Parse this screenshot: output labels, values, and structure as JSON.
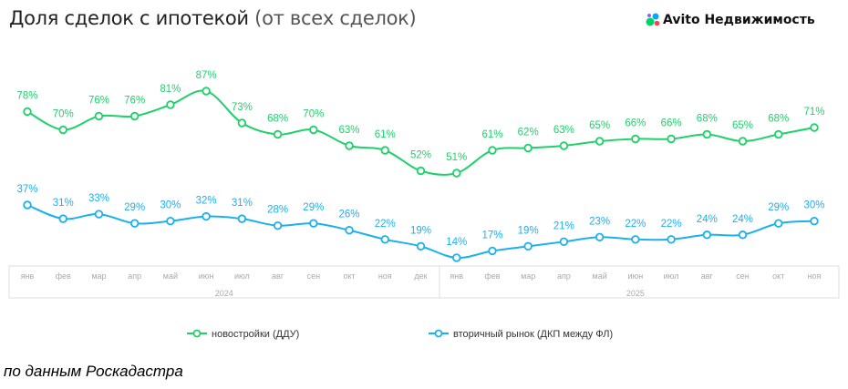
{
  "title": {
    "main": "Доля сделок с ипотекой",
    "sub": "(от всех сделок)"
  },
  "logo": {
    "text": "Avito Недвижимость"
  },
  "source": "по данным Роскадастра",
  "colors": {
    "green": "#1fd16a",
    "blue": "#1bb0ef"
  },
  "chart_data": {
    "type": "line",
    "title": "Доля сделок с ипотекой (от всех сделок)",
    "categories": [
      "янв",
      "фев",
      "мар",
      "апр",
      "май",
      "июн",
      "июл",
      "авг",
      "сен",
      "окт",
      "ноя",
      "дек",
      "янв",
      "фев",
      "мар",
      "апр",
      "май",
      "июн",
      "июл",
      "авг",
      "сен",
      "окт",
      "ноя"
    ],
    "years": [
      {
        "label": "2024",
        "months": 12
      },
      {
        "label": "2025",
        "months": 11
      }
    ],
    "unit": "%",
    "series": [
      {
        "name": "новостройки (ДДУ)",
        "color": "#1fd16a",
        "values": [
          78,
          70,
          76,
          76,
          81,
          87,
          73,
          68,
          70,
          63,
          61,
          52,
          51,
          61,
          62,
          63,
          65,
          66,
          66,
          68,
          65,
          68,
          71
        ]
      },
      {
        "name": "вторичный рынок (ДКП между ФЛ)",
        "color": "#1bb0ef",
        "values": [
          37,
          31,
          33,
          29,
          30,
          32,
          31,
          28,
          29,
          26,
          22,
          19,
          14,
          17,
          19,
          21,
          23,
          22,
          22,
          24,
          24,
          29,
          30
        ]
      }
    ],
    "legend": "bottom"
  }
}
